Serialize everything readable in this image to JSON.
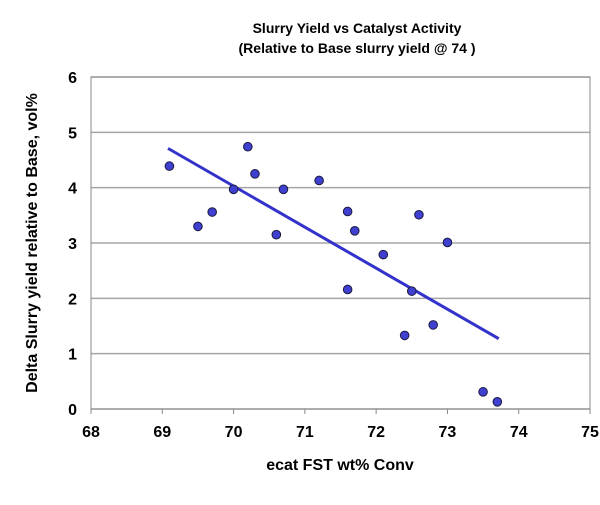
{
  "chart_data": {
    "type": "scatter",
    "title": "Slurry Yield vs Catalyst Activity",
    "subtitle": "(Relative to Base slurry yield @ 74 )",
    "xlabel": "ecat FST wt% Conv",
    "ylabel": "Delta Slurry yield relative to Base, vol%",
    "xlim": [
      68,
      75
    ],
    "ylim": [
      0,
      6
    ],
    "xticks": [
      "68",
      "69",
      "70",
      "71",
      "72",
      "73",
      "74",
      "75"
    ],
    "yticks": [
      "0",
      "1",
      "2",
      "3",
      "4",
      "5",
      "6"
    ],
    "grid": "horizontal",
    "legend": "none",
    "points": [
      {
        "x": 69.1,
        "y": 4.39
      },
      {
        "x": 69.5,
        "y": 3.3
      },
      {
        "x": 69.7,
        "y": 3.56
      },
      {
        "x": 70.0,
        "y": 3.97
      },
      {
        "x": 70.2,
        "y": 4.74
      },
      {
        "x": 70.3,
        "y": 4.25
      },
      {
        "x": 70.6,
        "y": 3.15
      },
      {
        "x": 70.7,
        "y": 3.97
      },
      {
        "x": 71.2,
        "y": 4.13
      },
      {
        "x": 71.6,
        "y": 3.57
      },
      {
        "x": 71.6,
        "y": 2.16
      },
      {
        "x": 71.7,
        "y": 3.22
      },
      {
        "x": 72.1,
        "y": 2.79
      },
      {
        "x": 72.4,
        "y": 1.33
      },
      {
        "x": 72.5,
        "y": 2.13
      },
      {
        "x": 72.6,
        "y": 3.51
      },
      {
        "x": 72.8,
        "y": 1.52
      },
      {
        "x": 73.0,
        "y": 3.01
      },
      {
        "x": 73.5,
        "y": 0.31
      },
      {
        "x": 73.7,
        "y": 0.13
      }
    ],
    "trendline": {
      "type": "linear",
      "start": {
        "x": 69.08,
        "y": 4.71
      },
      "end": {
        "x": 73.72,
        "y": 1.27
      }
    },
    "colors": {
      "marker": "#3f3fd0",
      "marker_edge": "#1a1a40",
      "trendline": "#3333cc",
      "grid": "#a6a6a6"
    }
  }
}
